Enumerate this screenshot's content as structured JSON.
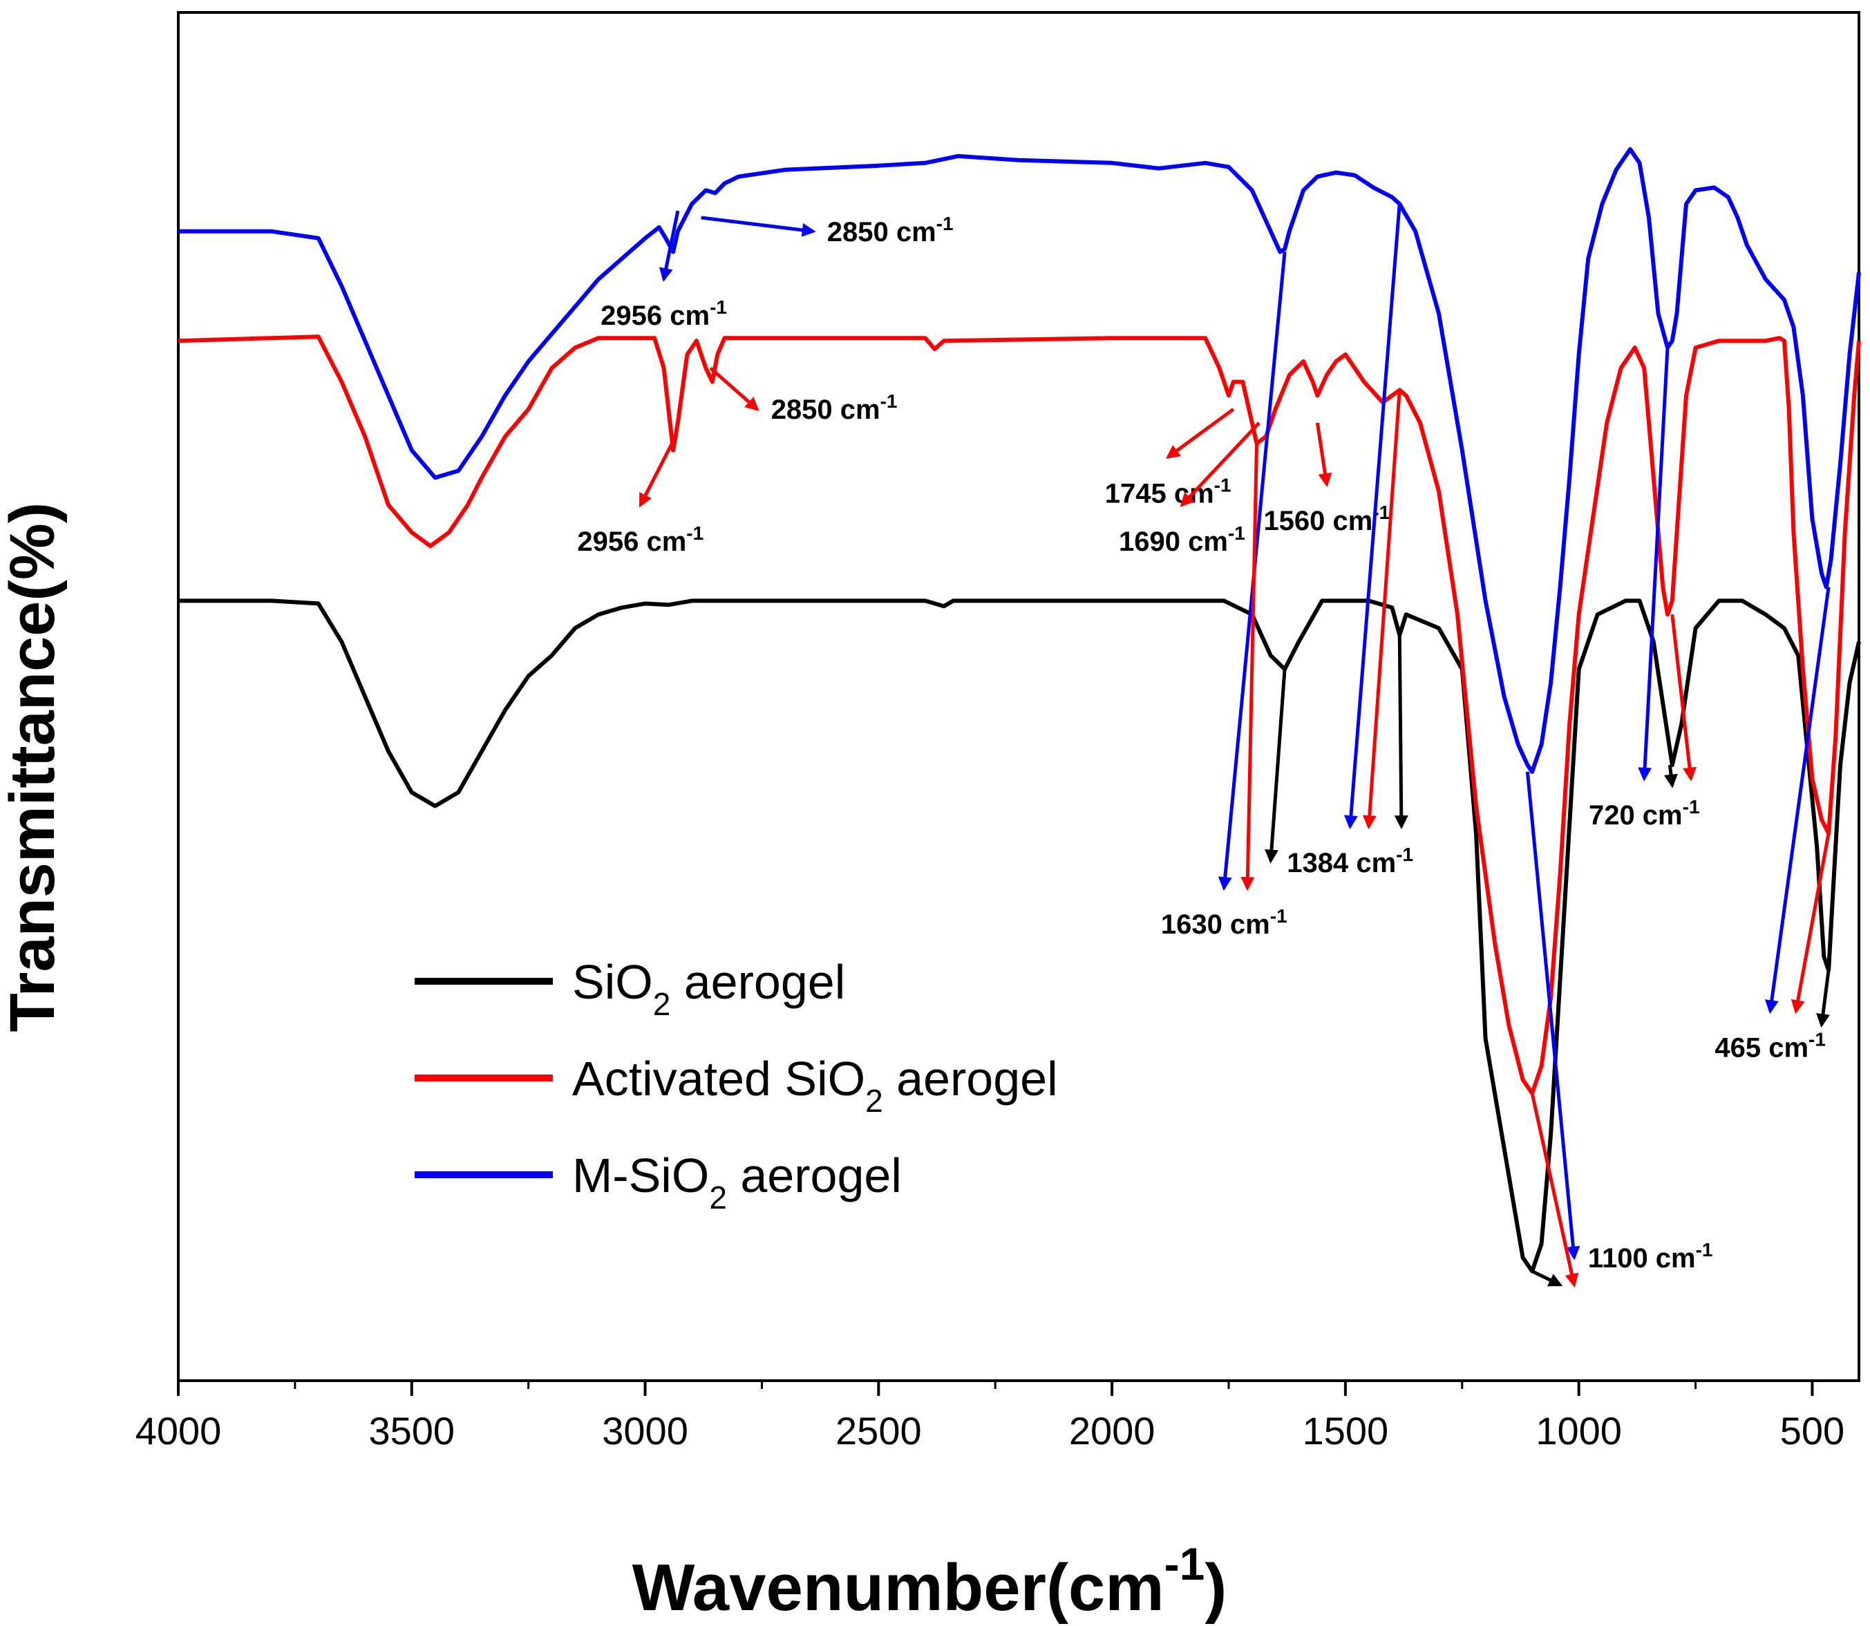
{
  "chart_data": {
    "type": "line",
    "xlabel": "Wavenumber(cm",
    "xlabel_sup": "-1",
    "xlabel_end": ")",
    "ylabel": "Transmittance(%)",
    "xlim": [
      4000,
      400
    ],
    "ylim": [
      0,
      100
    ],
    "y_ticks_shown": false,
    "grid": false,
    "xticks": [
      4000,
      3500,
      3000,
      2500,
      2000,
      1500,
      1000,
      500
    ],
    "xtick_labels": [
      "4000",
      "3500",
      "3000",
      "2500",
      "2000",
      "1500",
      "1000",
      "500"
    ],
    "legend_position": "lower-left",
    "series": [
      {
        "name": "SiO2 aerogel",
        "legend": {
          "pre": "SiO",
          "sub": "2",
          "post": " aerogel"
        },
        "color": "#000000",
        "points": [
          [
            4000,
            57
          ],
          [
            3800,
            57
          ],
          [
            3700,
            56.8
          ],
          [
            3650,
            54
          ],
          [
            3600,
            50
          ],
          [
            3550,
            46
          ],
          [
            3500,
            43
          ],
          [
            3450,
            42
          ],
          [
            3400,
            43
          ],
          [
            3350,
            46
          ],
          [
            3300,
            49
          ],
          [
            3250,
            51.5
          ],
          [
            3200,
            53
          ],
          [
            3150,
            55
          ],
          [
            3100,
            56
          ],
          [
            3050,
            56.5
          ],
          [
            3000,
            56.8
          ],
          [
            2950,
            56.7
          ],
          [
            2900,
            57
          ],
          [
            2700,
            57
          ],
          [
            2400,
            57
          ],
          [
            2360,
            56.6
          ],
          [
            2340,
            57
          ],
          [
            2000,
            57
          ],
          [
            1800,
            57
          ],
          [
            1760,
            57
          ],
          [
            1700,
            56
          ],
          [
            1660,
            53
          ],
          [
            1630,
            52
          ],
          [
            1600,
            54
          ],
          [
            1550,
            57
          ],
          [
            1450,
            57
          ],
          [
            1400,
            56.5
          ],
          [
            1384,
            54.5
          ],
          [
            1370,
            56
          ],
          [
            1300,
            55
          ],
          [
            1250,
            52
          ],
          [
            1220,
            40
          ],
          [
            1200,
            25
          ],
          [
            1150,
            15
          ],
          [
            1120,
            9
          ],
          [
            1100,
            8
          ],
          [
            1080,
            10
          ],
          [
            1060,
            18
          ],
          [
            1030,
            35
          ],
          [
            1000,
            52
          ],
          [
            960,
            56
          ],
          [
            900,
            57
          ],
          [
            870,
            57
          ],
          [
            840,
            54
          ],
          [
            800,
            45
          ],
          [
            780,
            48
          ],
          [
            750,
            55
          ],
          [
            700,
            57
          ],
          [
            650,
            57
          ],
          [
            600,
            56
          ],
          [
            560,
            55
          ],
          [
            530,
            53
          ],
          [
            510,
            46
          ],
          [
            490,
            39
          ],
          [
            475,
            31
          ],
          [
            465,
            30
          ],
          [
            455,
            36
          ],
          [
            440,
            45
          ],
          [
            420,
            51
          ],
          [
            400,
            54
          ]
        ]
      },
      {
        "name": "Activated SiO2 aerogel",
        "legend": {
          "pre": "Activated SiO",
          "sub": "2",
          "post": " aerogel"
        },
        "color": "#ff0000",
        "points": [
          [
            4000,
            76
          ],
          [
            3800,
            76.2
          ],
          [
            3700,
            76.3
          ],
          [
            3650,
            73
          ],
          [
            3600,
            69
          ],
          [
            3550,
            64
          ],
          [
            3500,
            62
          ],
          [
            3460,
            61
          ],
          [
            3420,
            62
          ],
          [
            3380,
            64
          ],
          [
            3350,
            66
          ],
          [
            3300,
            69
          ],
          [
            3250,
            71
          ],
          [
            3200,
            74
          ],
          [
            3150,
            75.5
          ],
          [
            3100,
            76.2
          ],
          [
            2980,
            76.2
          ],
          [
            2960,
            74
          ],
          [
            2950,
            71
          ],
          [
            2940,
            68
          ],
          [
            2930,
            70
          ],
          [
            2910,
            75
          ],
          [
            2890,
            76
          ],
          [
            2870,
            74
          ],
          [
            2856,
            73
          ],
          [
            2845,
            75
          ],
          [
            2830,
            76.2
          ],
          [
            2400,
            76.2
          ],
          [
            2380,
            75.4
          ],
          [
            2360,
            76
          ],
          [
            2000,
            76.2
          ],
          [
            1800,
            76.2
          ],
          [
            1770,
            74
          ],
          [
            1750,
            72
          ],
          [
            1740,
            73
          ],
          [
            1720,
            73
          ],
          [
            1700,
            70
          ],
          [
            1690,
            68.5
          ],
          [
            1670,
            69
          ],
          [
            1650,
            71
          ],
          [
            1620,
            73.5
          ],
          [
            1590,
            74.5
          ],
          [
            1570,
            73
          ],
          [
            1560,
            72
          ],
          [
            1540,
            73.5
          ],
          [
            1520,
            74.5
          ],
          [
            1500,
            75
          ],
          [
            1460,
            73
          ],
          [
            1420,
            71.5
          ],
          [
            1400,
            72
          ],
          [
            1384,
            72.4
          ],
          [
            1370,
            72
          ],
          [
            1340,
            70
          ],
          [
            1300,
            65
          ],
          [
            1260,
            56
          ],
          [
            1220,
            42
          ],
          [
            1180,
            32
          ],
          [
            1150,
            26
          ],
          [
            1120,
            22
          ],
          [
            1100,
            21
          ],
          [
            1080,
            23
          ],
          [
            1060,
            28
          ],
          [
            1040,
            37
          ],
          [
            1020,
            48
          ],
          [
            1000,
            56
          ],
          [
            970,
            63
          ],
          [
            940,
            70
          ],
          [
            910,
            74
          ],
          [
            880,
            75.5
          ],
          [
            860,
            74
          ],
          [
            840,
            66
          ],
          [
            820,
            58
          ],
          [
            810,
            56
          ],
          [
            800,
            57
          ],
          [
            790,
            62
          ],
          [
            770,
            72
          ],
          [
            750,
            75.5
          ],
          [
            700,
            76
          ],
          [
            600,
            76
          ],
          [
            570,
            76.2
          ],
          [
            560,
            76
          ],
          [
            550,
            71
          ],
          [
            540,
            62
          ],
          [
            520,
            52
          ],
          [
            500,
            44
          ],
          [
            480,
            41
          ],
          [
            465,
            40
          ],
          [
            450,
            47
          ],
          [
            430,
            62
          ],
          [
            410,
            72
          ],
          [
            400,
            76
          ]
        ]
      },
      {
        "name": "M-SiO2 aerogel",
        "legend": {
          "pre": "M-SiO",
          "sub": "2",
          "post": " aerogel"
        },
        "color": "#0000ff",
        "points": [
          [
            4000,
            84
          ],
          [
            3800,
            84
          ],
          [
            3700,
            83.5
          ],
          [
            3650,
            80
          ],
          [
            3600,
            76
          ],
          [
            3550,
            72
          ],
          [
            3500,
            68
          ],
          [
            3450,
            66
          ],
          [
            3400,
            66.5
          ],
          [
            3350,
            69
          ],
          [
            3300,
            72
          ],
          [
            3250,
            74.5
          ],
          [
            3200,
            76.5
          ],
          [
            3150,
            78.5
          ],
          [
            3100,
            80.5
          ],
          [
            3050,
            82
          ],
          [
            3000,
            83.5
          ],
          [
            2970,
            84.3
          ],
          [
            2956,
            83.5
          ],
          [
            2940,
            82.5
          ],
          [
            2930,
            84
          ],
          [
            2900,
            86
          ],
          [
            2870,
            87
          ],
          [
            2850,
            86.8
          ],
          [
            2830,
            87.5
          ],
          [
            2800,
            88
          ],
          [
            2700,
            88.5
          ],
          [
            2500,
            88.8
          ],
          [
            2400,
            89
          ],
          [
            2330,
            89.5
          ],
          [
            2200,
            89.2
          ],
          [
            2000,
            89
          ],
          [
            1900,
            88.6
          ],
          [
            1800,
            89
          ],
          [
            1750,
            88.7
          ],
          [
            1700,
            87
          ],
          [
            1660,
            84
          ],
          [
            1640,
            82.5
          ],
          [
            1630,
            82.7
          ],
          [
            1620,
            84
          ],
          [
            1590,
            87
          ],
          [
            1560,
            88
          ],
          [
            1520,
            88.3
          ],
          [
            1480,
            88.1
          ],
          [
            1440,
            87.2
          ],
          [
            1400,
            86.5
          ],
          [
            1384,
            86
          ],
          [
            1350,
            84
          ],
          [
            1300,
            78
          ],
          [
            1250,
            68
          ],
          [
            1200,
            57
          ],
          [
            1160,
            50
          ],
          [
            1130,
            46.5
          ],
          [
            1110,
            45
          ],
          [
            1100,
            44.5
          ],
          [
            1080,
            46.5
          ],
          [
            1060,
            51
          ],
          [
            1040,
            58
          ],
          [
            1020,
            66
          ],
          [
            1000,
            75
          ],
          [
            980,
            82
          ],
          [
            950,
            86
          ],
          [
            920,
            88.5
          ],
          [
            890,
            90
          ],
          [
            870,
            89
          ],
          [
            850,
            85
          ],
          [
            830,
            78
          ],
          [
            810,
            75.5
          ],
          [
            800,
            76
          ],
          [
            790,
            78
          ],
          [
            770,
            86
          ],
          [
            750,
            87
          ],
          [
            710,
            87.2
          ],
          [
            680,
            86.5
          ],
          [
            660,
            85
          ],
          [
            640,
            83
          ],
          [
            600,
            80.5
          ],
          [
            560,
            79
          ],
          [
            540,
            77
          ],
          [
            520,
            72
          ],
          [
            500,
            63
          ],
          [
            480,
            59
          ],
          [
            470,
            58
          ],
          [
            460,
            60
          ],
          [
            440,
            67
          ],
          [
            420,
            75
          ],
          [
            400,
            81
          ]
        ]
      }
    ],
    "annotations": [
      {
        "text": "2850 cm",
        "sup": "-1",
        "color": "#0000ff",
        "from": [
          2880,
          85
        ],
        "to": [
          2640,
          84
        ]
      },
      {
        "text": "2956 cm",
        "sup": "-1",
        "color": "#0000ff",
        "from": [
          2930,
          85.5
        ],
        "to": [
          2960,
          80.5
        ]
      },
      {
        "text": "2850 cm",
        "sup": "-1",
        "color": "#ff0000",
        "from": [
          2860,
          74
        ],
        "to": [
          2760,
          71
        ]
      },
      {
        "text": "2956 cm",
        "sup": "-1",
        "color": "#ff0000",
        "from": [
          2935,
          69
        ],
        "to": [
          3010,
          64
        ]
      },
      {
        "text": "1745 cm",
        "sup": "-1",
        "color": "#ff0000",
        "from": [
          1740,
          71
        ],
        "to": [
          1880,
          67.5
        ]
      },
      {
        "text": "1690 cm",
        "sup": "-1",
        "color": "#ff0000",
        "from": [
          1685,
          70
        ],
        "to": [
          1850,
          64
        ]
      },
      {
        "text": "1560 cm",
        "sup": "-1",
        "color": "#ff0000",
        "from": [
          1560,
          70
        ],
        "to": [
          1540,
          65.5
        ]
      },
      {
        "text": "1630 cm",
        "sup": "-1",
        "color": "#0000ff",
        "from": [
          1630,
          82.5
        ],
        "to": [
          1760,
          36
        ]
      },
      {
        "text": "",
        "color": "#ff0000",
        "from": [
          1690,
          68.5
        ],
        "to": [
          1710,
          36
        ]
      },
      {
        "text": "",
        "color": "#000000",
        "from": [
          1630,
          52
        ],
        "to": [
          1660,
          38
        ]
      },
      {
        "text": "1384 cm",
        "sup": "-1",
        "color": "#0000ff",
        "from": [
          1384,
          86
        ],
        "to": [
          1490,
          40.5
        ]
      },
      {
        "text": "",
        "color": "#ff0000",
        "from": [
          1384,
          72.4
        ],
        "to": [
          1450,
          40.5
        ]
      },
      {
        "text": "",
        "color": "#000000",
        "from": [
          1384,
          54.5
        ],
        "to": [
          1380,
          40.5
        ]
      },
      {
        "text": "720 cm",
        "sup": "-1",
        "color": "#0000ff",
        "from": [
          810,
          75.5
        ],
        "to": [
          860,
          44
        ]
      },
      {
        "text": "",
        "color": "#000000",
        "from": [
          805,
          45
        ],
        "to": [
          800,
          43.5
        ]
      },
      {
        "text": "",
        "color": "#ff0000",
        "from": [
          800,
          56
        ],
        "to": [
          760,
          44
        ]
      },
      {
        "text": "1100 cm",
        "sup": "-1",
        "color": "#0000ff",
        "from": [
          1110,
          44.5
        ],
        "to": [
          1010,
          9
        ]
      },
      {
        "text": "",
        "color": "#ff0000",
        "from": [
          1100,
          21
        ],
        "to": [
          1010,
          7
        ]
      },
      {
        "text": "",
        "color": "#000000",
        "from": [
          1100,
          8
        ],
        "to": [
          1040,
          7
        ]
      },
      {
        "text": "465 cm",
        "sup": "-1",
        "color": "#0000ff",
        "from": [
          465,
          58
        ],
        "to": [
          590,
          27
        ]
      },
      {
        "text": "",
        "color": "#ff0000",
        "from": [
          465,
          40
        ],
        "to": [
          535,
          27
        ]
      },
      {
        "text": "",
        "color": "#000000",
        "from": [
          465,
          30
        ],
        "to": [
          480,
          26
        ]
      }
    ]
  }
}
